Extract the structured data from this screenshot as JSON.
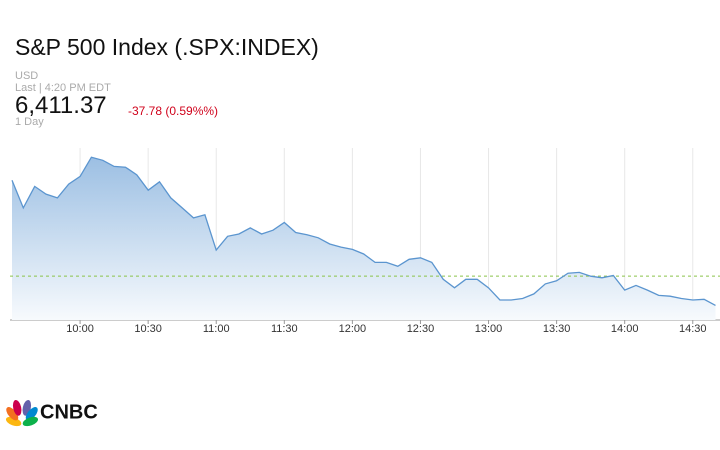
{
  "chart_data": {
    "type": "area",
    "title": "S&P 500 Index (.SPX:INDEX)",
    "currency": "USD",
    "last_time": "Last | 4:20 PM EDT",
    "price": "6,411.37",
    "change": "-37.78 (0.59%%)",
    "period": "1 Day",
    "logo": "CNBC",
    "color": "#5b95cf",
    "reference_line": 6449.15,
    "x": [
      570,
      575,
      580,
      585,
      590,
      595,
      600,
      605,
      610,
      615,
      620,
      625,
      630,
      635,
      640,
      645,
      650,
      655,
      660,
      665,
      670,
      675,
      680,
      685,
      690,
      695,
      700,
      705,
      710,
      715,
      720,
      725,
      730,
      735,
      740,
      745,
      750,
      755,
      760,
      765,
      770,
      775,
      780,
      785,
      790,
      795,
      800,
      805,
      810,
      815,
      820,
      825,
      830,
      835,
      840,
      845,
      850,
      855,
      860,
      865,
      870,
      875,
      880
    ],
    "values": [
      6574,
      6538,
      6566,
      6556,
      6551,
      6569,
      6579,
      6604,
      6600,
      6592,
      6591,
      6581,
      6561,
      6572,
      6551,
      6538,
      6525,
      6529,
      6483,
      6501,
      6504,
      6512,
      6504,
      6509,
      6519,
      6506,
      6503,
      6499,
      6491,
      6487,
      6484,
      6478,
      6467,
      6467,
      6462,
      6471,
      6473,
      6467,
      6445,
      6434,
      6445,
      6445,
      6434,
      6418,
      6418,
      6420,
      6426,
      6439,
      6443,
      6453,
      6454,
      6449,
      6447,
      6450,
      6431,
      6437,
      6431,
      6424,
      6423,
      6420,
      6418,
      6419,
      6411
    ],
    "xlim": [
      570,
      882
    ],
    "ylim": [
      6392,
      6616
    ],
    "xticks": [
      {
        "value": 600,
        "label": "10:00"
      },
      {
        "value": 630,
        "label": "10:30"
      },
      {
        "value": 660,
        "label": "11:00"
      },
      {
        "value": 690,
        "label": "11:30"
      },
      {
        "value": 720,
        "label": "12:00"
      },
      {
        "value": 750,
        "label": "12:30"
      },
      {
        "value": 780,
        "label": "13:00"
      },
      {
        "value": 810,
        "label": "13:30"
      },
      {
        "value": 840,
        "label": "14:00"
      },
      {
        "value": 870,
        "label": "14:30"
      }
    ],
    "grid": true
  }
}
